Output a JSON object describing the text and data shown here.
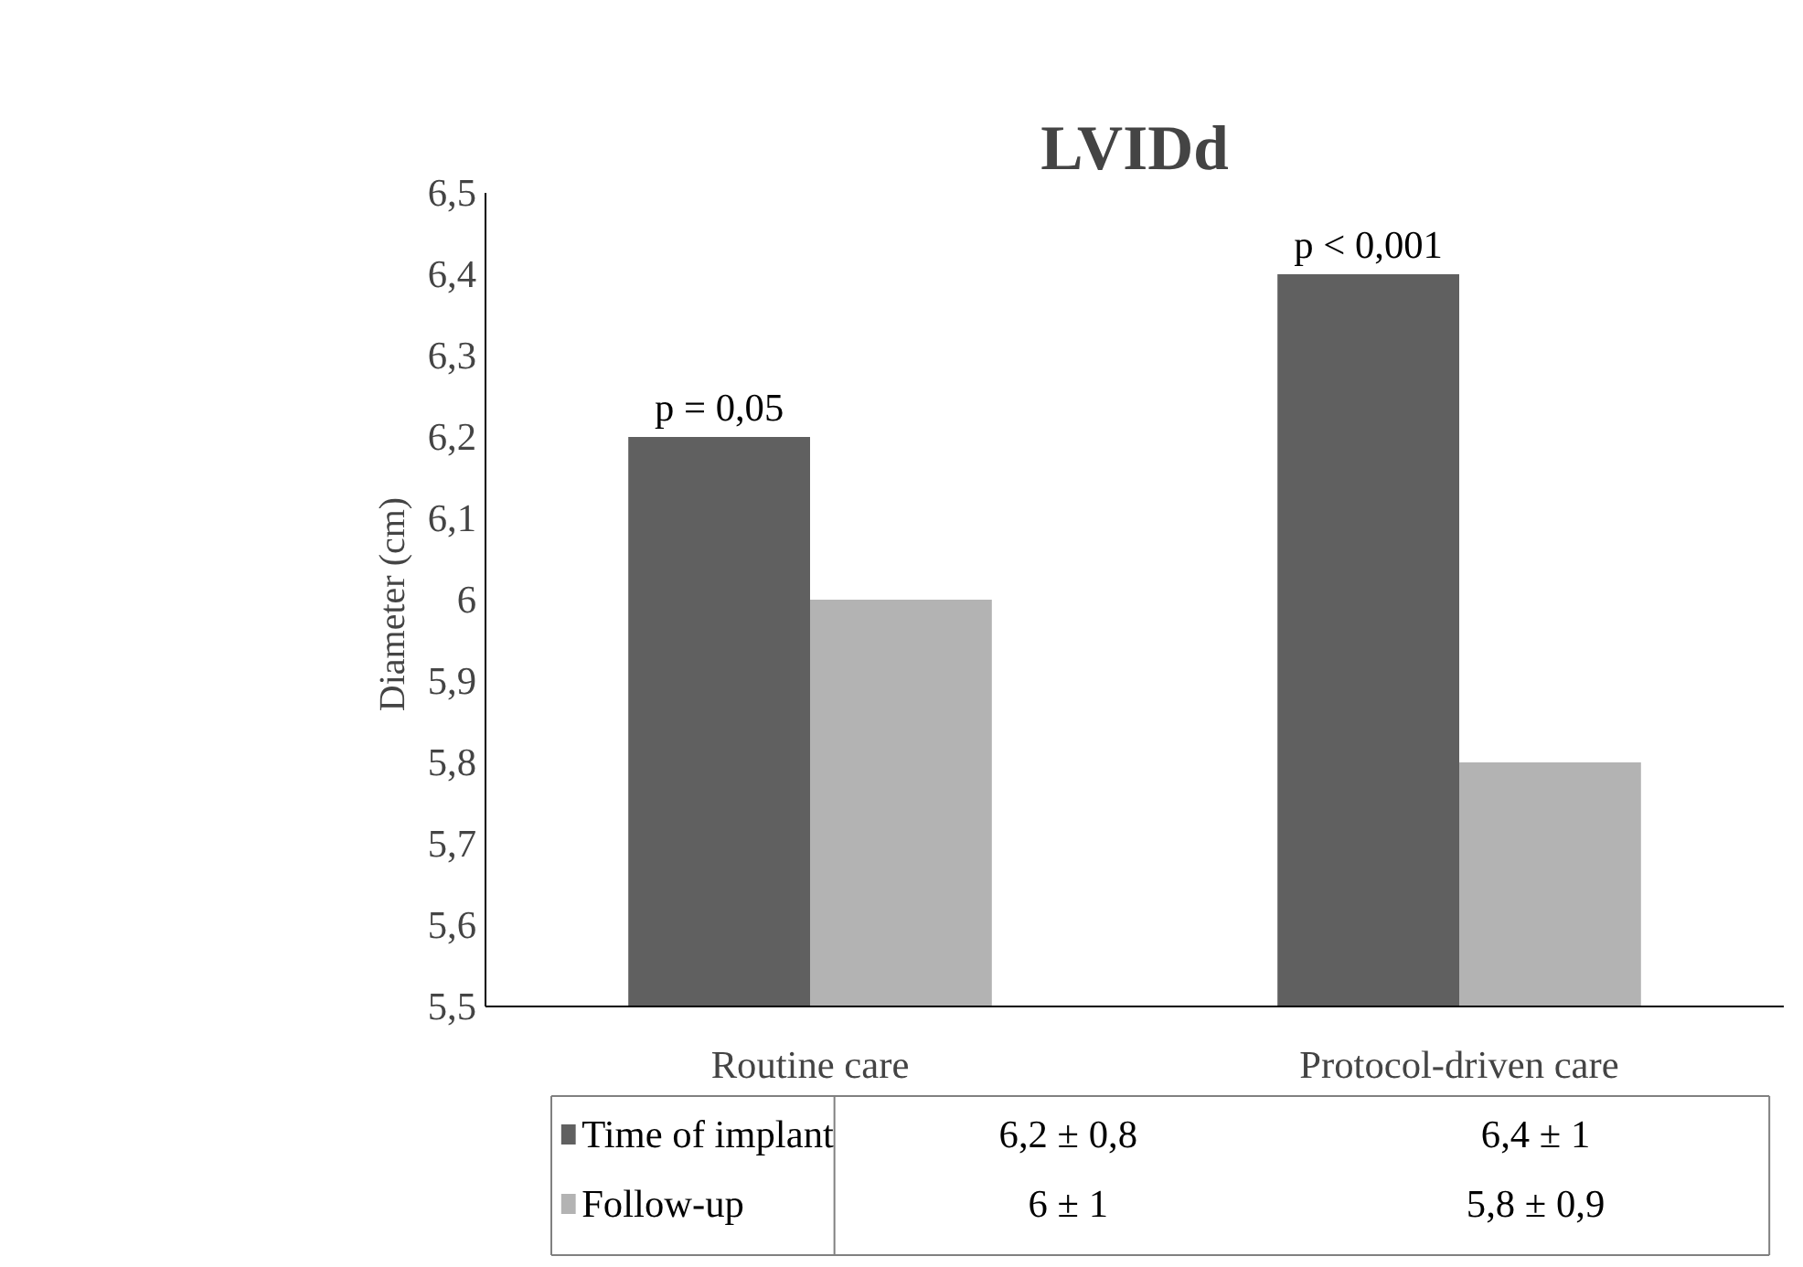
{
  "chart_data": {
    "type": "bar",
    "title": "LVIDd",
    "ylabel": "Diameter  (cm)",
    "categories": [
      "Routine care",
      "Protocol-driven care"
    ],
    "series": [
      {
        "name": "Time of implant",
        "color": "#606060",
        "values": [
          6.2,
          6.4
        ],
        "value_labels": [
          "6,2 ± 0,8",
          "6,4 ± 1"
        ]
      },
      {
        "name": "Follow-up",
        "color": "#b3b3b3",
        "values": [
          6.0,
          5.8
        ],
        "value_labels": [
          "6 ± 1",
          "5,8 ± 0,9"
        ]
      }
    ],
    "ylim": [
      5.5,
      6.5
    ],
    "yticks": [
      {
        "value": 5.5,
        "label": "5,5"
      },
      {
        "value": 5.6,
        "label": "5,6"
      },
      {
        "value": 5.7,
        "label": "5,7"
      },
      {
        "value": 5.8,
        "label": "5,8"
      },
      {
        "value": 5.9,
        "label": "5,9"
      },
      6,
      {
        "value": 6.1,
        "label": "6,1"
      },
      {
        "value": 6.2,
        "label": "6,2"
      },
      {
        "value": 6.3,
        "label": "6,3"
      },
      {
        "value": 6.4,
        "label": "6,4"
      },
      {
        "value": 6.5,
        "label": "6,5"
      }
    ],
    "annotations": [
      {
        "text": "p = 0,05",
        "x": "Routine care",
        "y": 6.2
      },
      {
        "text": "p < 0,001",
        "x": "Protocol-driven care",
        "y": 6.4
      }
    ],
    "legend": "bottom",
    "grid": false
  }
}
